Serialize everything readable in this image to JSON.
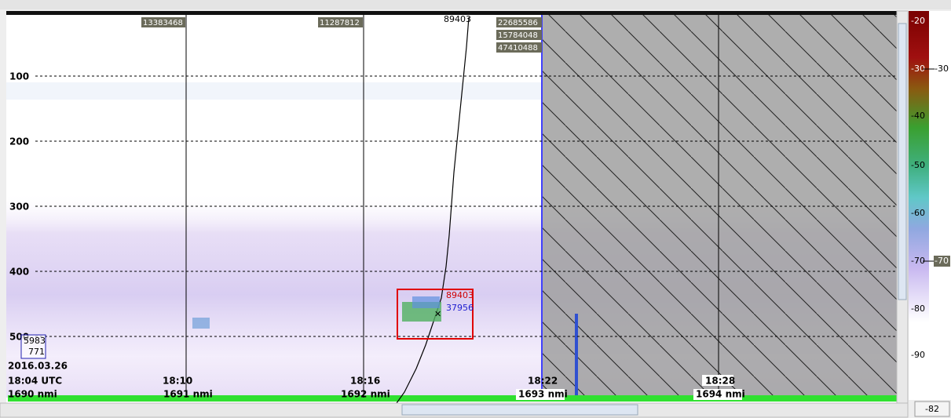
{
  "ping_labels": [
    "13383468",
    "11287812"
  ],
  "top_labels": {
    "track": "89403",
    "values": [
      "22685586",
      "15784048",
      "47410488"
    ]
  },
  "depth_labels": [
    "100",
    "200",
    "300",
    "400",
    "500"
  ],
  "date": "2016.03.26",
  "time_labels": [
    "18:04 UTC",
    "18:10",
    "18:16",
    "18:22",
    "18:28"
  ],
  "distance_labels": [
    "1690 nmi",
    "1691 nmi",
    "1692 nmi",
    "1693 nmi",
    "1694 nmi"
  ],
  "selection": {
    "labels": [
      "89403",
      "37956"
    ]
  },
  "marker": {
    "labels": [
      "5983",
      "771"
    ]
  },
  "colorbar": {
    "labels": [
      "-20",
      "-30",
      "-40",
      "-50",
      "-60",
      "-70",
      "-80",
      "-90"
    ],
    "markers": [
      "-30",
      "-70"
    ],
    "value": "-82"
  }
}
